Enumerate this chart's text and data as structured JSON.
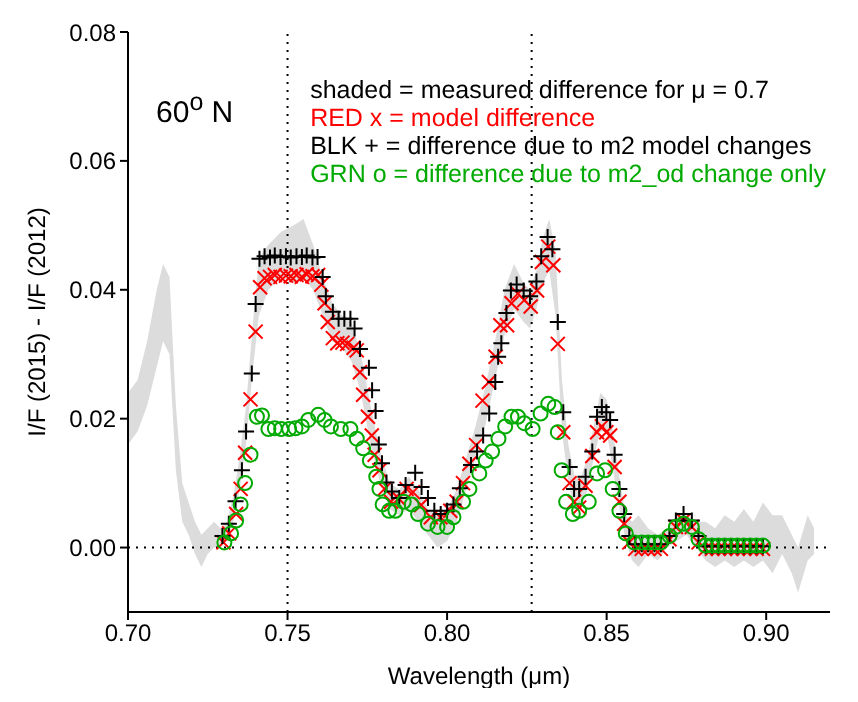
{
  "chart_data": {
    "type": "scatter",
    "xlabel": "Wavelength (μm)",
    "ylabel": "I/F (2015) - I/F (2012)",
    "annotations": [
      "60$^{o}$ N",
      "shaded = measured difference for μ = 0.7"
    ],
    "xlim": [
      0.7,
      0.92
    ],
    "ylim": [
      -0.01,
      0.08
    ],
    "xticks": [
      {
        "value": 0.7,
        "label": "0.70"
      },
      {
        "value": 0.75,
        "label": "0.75"
      },
      {
        "value": 0.8,
        "label": "0.80"
      },
      {
        "value": 0.85,
        "label": "0.85"
      },
      {
        "value": 0.9,
        "label": "0.90"
      }
    ],
    "yticks": [
      {
        "value": 0,
        "label": "0.00"
      },
      {
        "value": 0.02,
        "label": "0.02"
      },
      {
        "value": 0.04,
        "label": "0.04"
      },
      {
        "value": 0.06,
        "label": "0.06"
      },
      {
        "value": 0.08,
        "label": "0.08"
      }
    ],
    "ref_lines": [
      {
        "axis": "x",
        "value": 0.75,
        "line_style": "dotted",
        "color": "#000000"
      },
      {
        "axis": "x",
        "value": 0.8265,
        "line_style": "dotted",
        "color": "#000000"
      },
      {
        "axis": "y",
        "value": 0,
        "line_style": "dotted",
        "color": "#000000"
      }
    ],
    "legend": "top right",
    "series": [
      {
        "type": "area",
        "color": "#dcdcdc",
        "values": [
          null,
          null,
          null,
          null,
          null,
          null,
          null,
          null,
          null,
          null,
          null,
          null,
          null,
          null,
          null,
          null,
          null,
          null,
          null,
          null,
          null,
          null,
          null,
          null,
          null,
          null,
          null,
          null,
          null,
          null,
          null,
          null,
          null,
          null,
          null,
          null,
          null,
          null,
          null,
          null,
          null,
          null,
          null,
          null,
          null,
          null,
          null,
          null,
          null,
          null,
          null,
          null,
          null,
          null,
          null,
          null,
          null,
          null,
          null,
          null,
          null,
          null,
          null,
          null,
          null,
          null,
          null,
          null,
          null,
          null,
          null,
          null,
          null,
          null,
          null,
          null,
          null,
          null,
          null,
          null,
          null,
          null,
          null,
          null
        ],
        "x": [
          0.7,
          0.703,
          0.706,
          0.709,
          0.711,
          0.713,
          0.715,
          0.717,
          0.719,
          0.721,
          0.723,
          0.725,
          0.727,
          0.729,
          0.731,
          0.733,
          0.735,
          0.737,
          0.739,
          0.741,
          0.744,
          0.748,
          0.752,
          0.755,
          0.758,
          0.761,
          0.764,
          0.767,
          0.77,
          0.773,
          0.776,
          0.779,
          0.782,
          0.785,
          0.788,
          0.791,
          0.794,
          0.797,
          0.8,
          0.803,
          0.806,
          0.809,
          0.812,
          0.815,
          0.818,
          0.821,
          0.824,
          0.826,
          0.828,
          0.83,
          0.832,
          0.834,
          0.836,
          0.838,
          0.84,
          0.842,
          0.844,
          0.846,
          0.848,
          0.85,
          0.852,
          0.854,
          0.856,
          0.858,
          0.86,
          0.863,
          0.866,
          0.869,
          0.872,
          0.875,
          0.878,
          0.881,
          0.884,
          0.887,
          0.89,
          0.893,
          0.896,
          0.899,
          0.902,
          0.905,
          0.908,
          0.91,
          0.913,
          0.915
        ],
        "lower": [
          0.016,
          0.018,
          0.022,
          0.028,
          0.032,
          0.03,
          0.012,
          0.004,
          0.002,
          -0.001,
          -0.003,
          -0.001,
          0,
          0,
          0.001,
          0.004,
          0.009,
          0.016,
          0.027,
          0.036,
          0.04,
          0.042,
          0.041,
          0.042,
          0.04,
          0.036,
          0.032,
          0.031,
          0.029,
          0.024,
          0.016,
          0.01,
          0.006,
          0.005,
          0.006,
          0.004,
          0.002,
          0,
          0.001,
          0.004,
          0.009,
          0.014,
          0.019,
          0.026,
          0.033,
          0.037,
          0.035,
          0.034,
          0.037,
          0.041,
          0.043,
          0.036,
          0.018,
          0.01,
          0.006,
          0.006,
          0.009,
          0.014,
          0.018,
          0.018,
          0.012,
          0.006,
          0.001,
          -0.002,
          -0.003,
          -0.001,
          -0.002,
          0,
          0.001,
          0.002,
          0,
          -0.002,
          -0.003,
          -0.002,
          -0.003,
          -0.002,
          -0.003,
          -0.002,
          -0.004,
          -0.001,
          -0.004,
          -0.007,
          -0.002,
          -0.001
        ],
        "upper": [
          0.024,
          0.026,
          0.032,
          0.04,
          0.044,
          0.042,
          0.022,
          0.01,
          0.007,
          0.004,
          0.002,
          0.003,
          0.004,
          0.003,
          0.004,
          0.008,
          0.014,
          0.022,
          0.034,
          0.045,
          0.047,
          0.049,
          0.05,
          0.051,
          0.047,
          0.042,
          0.038,
          0.036,
          0.035,
          0.03,
          0.022,
          0.015,
          0.01,
          0.009,
          0.011,
          0.009,
          0.006,
          0.005,
          0.006,
          0.009,
          0.014,
          0.019,
          0.025,
          0.032,
          0.04,
          0.044,
          0.041,
          0.04,
          0.043,
          0.048,
          0.051,
          0.046,
          0.026,
          0.016,
          0.011,
          0.011,
          0.014,
          0.019,
          0.024,
          0.023,
          0.018,
          0.011,
          0.005,
          0.004,
          0.005,
          0.003,
          0.002,
          0.003,
          0.005,
          0.005,
          0.004,
          0.004,
          0.003,
          0.005,
          0.004,
          0.006,
          0.004,
          0.007,
          0.005,
          0.005,
          0.002,
          0,
          0.005,
          0.003
        ]
      },
      {
        "marker": "x",
        "name": "RED x = model difference",
        "color": "#ff0000",
        "x": [
          0.7299,
          0.7317,
          0.7339,
          0.7353,
          0.7367,
          0.7384,
          0.74,
          0.7414,
          0.7428,
          0.7445,
          0.746,
          0.7478,
          0.7495,
          0.751,
          0.7528,
          0.7545,
          0.756,
          0.7578,
          0.7596,
          0.7606,
          0.7616,
          0.7626,
          0.7642,
          0.7656,
          0.7672,
          0.7687,
          0.7707,
          0.7717,
          0.7727,
          0.7737,
          0.7752,
          0.7764,
          0.7773,
          0.7788,
          0.7804,
          0.7824,
          0.7848,
          0.7873,
          0.7893,
          0.7919,
          0.7949,
          0.7979,
          0.801,
          0.803,
          0.805,
          0.807,
          0.8091,
          0.8111,
          0.8131,
          0.8152,
          0.8167,
          0.8188,
          0.8202,
          0.8222,
          0.8242,
          0.8262,
          0.8282,
          0.8297,
          0.8317,
          0.8333,
          0.8347,
          0.8364,
          0.8384,
          0.8398,
          0.8414,
          0.8434,
          0.8455,
          0.847,
          0.8485,
          0.8499,
          0.8511,
          0.8525,
          0.854,
          0.8555,
          0.8571,
          0.859,
          0.861,
          0.863,
          0.865,
          0.867,
          0.8697,
          0.8717,
          0.8741,
          0.8767,
          0.8788,
          0.881,
          0.883,
          0.885,
          0.887,
          0.889,
          0.891,
          0.893,
          0.895,
          0.897,
          0.899
        ],
        "values": [
          0.0008,
          0.0022,
          0.0052,
          0.0091,
          0.0147,
          0.023,
          0.0335,
          0.0404,
          0.0418,
          0.042,
          0.0423,
          0.042,
          0.0422,
          0.0421,
          0.0423,
          0.042,
          0.0424,
          0.0421,
          0.0423,
          0.0408,
          0.0379,
          0.035,
          0.0325,
          0.0317,
          0.0318,
          0.0316,
          0.031,
          0.0306,
          0.0272,
          0.0237,
          0.0203,
          0.0174,
          0.0144,
          0.012,
          0.0091,
          0.0071,
          0.0076,
          0.0091,
          0.0086,
          0.0066,
          0.0047,
          0.0047,
          0.0057,
          0.0071,
          0.01,
          0.013,
          0.0159,
          0.0228,
          0.0257,
          0.0296,
          0.0345,
          0.0345,
          0.0379,
          0.0394,
          0.0384,
          0.0374,
          0.0399,
          0.0443,
          0.0467,
          0.0438,
          0.0316,
          0.0179,
          0.01,
          0.0071,
          0.0062,
          0.0096,
          0.0142,
          0.0179,
          0.0188,
          0.0179,
          0.0174,
          0.0125,
          0.0071,
          0.0037,
          0.0008,
          -0.0002,
          -0.0002,
          -0.0002,
          -0.0002,
          -0.0002,
          0.0013,
          0.0032,
          0.0042,
          0.0032,
          0.0008,
          -0.0002,
          -0.0002,
          -0.0002,
          -0.0002,
          -0.0002,
          -0.0002,
          -0.0002,
          -0.0002,
          -0.0002,
          -0.0002
        ]
      },
      {
        "marker": "cross",
        "name": "BLK + = difference due to m2 model changes",
        "color": "#000000",
        "x": [
          0.7296,
          0.7316,
          0.7337,
          0.7357,
          0.737,
          0.7388,
          0.74,
          0.7412,
          0.7428,
          0.7445,
          0.746,
          0.7478,
          0.7495,
          0.751,
          0.7528,
          0.7545,
          0.756,
          0.7578,
          0.7594,
          0.761,
          0.762,
          0.7642,
          0.766,
          0.7678,
          0.7697,
          0.771,
          0.7727,
          0.7755,
          0.7765,
          0.7776,
          0.7786,
          0.7796,
          0.781,
          0.7827,
          0.785,
          0.787,
          0.79,
          0.792,
          0.794,
          0.796,
          0.798,
          0.8,
          0.802,
          0.804,
          0.8075,
          0.8094,
          0.8113,
          0.8132,
          0.8151,
          0.816,
          0.817,
          0.8186,
          0.82,
          0.8218,
          0.824,
          0.826,
          0.828,
          0.8295,
          0.8315,
          0.833,
          0.8347,
          0.8364,
          0.8384,
          0.8398,
          0.8414,
          0.8434,
          0.8455,
          0.847,
          0.8485,
          0.8499,
          0.8511,
          0.8525,
          0.854,
          0.8555,
          0.8571,
          0.859,
          0.861,
          0.863,
          0.865,
          0.867,
          0.8697,
          0.8717,
          0.8741,
          0.8767,
          0.8788,
          0.881,
          0.883,
          0.885,
          0.887,
          0.889,
          0.891,
          0.893,
          0.895,
          0.897,
          0.899
        ],
        "values": [
          0.0018,
          0.0037,
          0.0072,
          0.012,
          0.018,
          0.027,
          0.0378,
          0.0448,
          0.0452,
          0.045,
          0.0453,
          0.0451,
          0.0452,
          0.045,
          0.0452,
          0.0451,
          0.0453,
          0.045,
          0.0451,
          0.042,
          0.039,
          0.0366,
          0.0355,
          0.0355,
          0.0355,
          0.034,
          0.0308,
          0.0279,
          0.0244,
          0.0212,
          0.016,
          0.0131,
          0.0101,
          0.0087,
          0.0077,
          0.0097,
          0.0116,
          0.0094,
          0.0077,
          0.0057,
          0.0052,
          0.0057,
          0.0067,
          0.0092,
          0.0128,
          0.0149,
          0.0174,
          0.0208,
          0.0257,
          0.0296,
          0.0317,
          0.0364,
          0.0399,
          0.0408,
          0.0399,
          0.039,
          0.0413,
          0.0452,
          0.0482,
          0.0463,
          0.035,
          0.021,
          0.0125,
          0.0091,
          0.0091,
          0.011,
          0.0149,
          0.0203,
          0.0218,
          0.021,
          0.0198,
          0.0144,
          0.0091,
          0.0052,
          0.0018,
          0.0005,
          0.0005,
          0.0005,
          0.0005,
          0.0005,
          0.0018,
          0.0042,
          0.0052,
          0.0042,
          0.0018,
          0.0002,
          0.0002,
          0.0002,
          0.0002,
          0.0002,
          0.0002,
          0.0002,
          0.0002,
          0.0002,
          0.0002
        ]
      },
      {
        "marker": "circle",
        "name": "GRN o = difference due to m2_od change only",
        "color": "#00aa00",
        "x": [
          0.7302,
          0.7323,
          0.7339,
          0.7353,
          0.7367,
          0.7384,
          0.7404,
          0.742,
          0.744,
          0.746,
          0.748,
          0.7505,
          0.7525,
          0.7545,
          0.7565,
          0.7596,
          0.7616,
          0.7636,
          0.7667,
          0.7697,
          0.7717,
          0.7737,
          0.7758,
          0.7778,
          0.7788,
          0.7798,
          0.7818,
          0.7838,
          0.7864,
          0.7889,
          0.7909,
          0.794,
          0.797,
          0.8,
          0.802,
          0.805,
          0.807,
          0.8101,
          0.8121,
          0.8141,
          0.8161,
          0.8182,
          0.8202,
          0.8222,
          0.8242,
          0.8268,
          0.8293,
          0.8317,
          0.8337,
          0.8347,
          0.8359,
          0.8373,
          0.8394,
          0.8414,
          0.8444,
          0.847,
          0.8495,
          0.8519,
          0.854,
          0.856,
          0.8586,
          0.861,
          0.863,
          0.865,
          0.867,
          0.8697,
          0.8717,
          0.8741,
          0.8767,
          0.8788,
          0.881,
          0.883,
          0.885,
          0.887,
          0.889,
          0.891,
          0.893,
          0.895,
          0.897,
          0.899
        ],
        "values": [
          0.0008,
          0.0022,
          0.0042,
          0.0067,
          0.01,
          0.0144,
          0.0203,
          0.0205,
          0.0184,
          0.0185,
          0.0184,
          0.0184,
          0.0185,
          0.0188,
          0.0198,
          0.0206,
          0.0198,
          0.0188,
          0.0184,
          0.0184,
          0.0169,
          0.0154,
          0.0135,
          0.011,
          0.0091,
          0.0067,
          0.0057,
          0.0057,
          0.0071,
          0.0067,
          0.0052,
          0.0037,
          0.0032,
          0.0032,
          0.0047,
          0.0071,
          0.0091,
          0.0115,
          0.0135,
          0.0149,
          0.0169,
          0.0188,
          0.0203,
          0.0203,
          0.0193,
          0.0184,
          0.0208,
          0.0223,
          0.0218,
          0.0179,
          0.012,
          0.0071,
          0.0052,
          0.0057,
          0.0071,
          0.0115,
          0.012,
          0.0091,
          0.0057,
          0.0022,
          0.0008,
          0.0008,
          0.0008,
          0.0008,
          0.0008,
          0.0018,
          0.0032,
          0.0037,
          0.0032,
          0.0013,
          0.0003,
          0.0003,
          0.0003,
          0.0003,
          0.0003,
          0.0003,
          0.0003,
          0.0003,
          0.0003,
          0.0003
        ]
      }
    ]
  }
}
